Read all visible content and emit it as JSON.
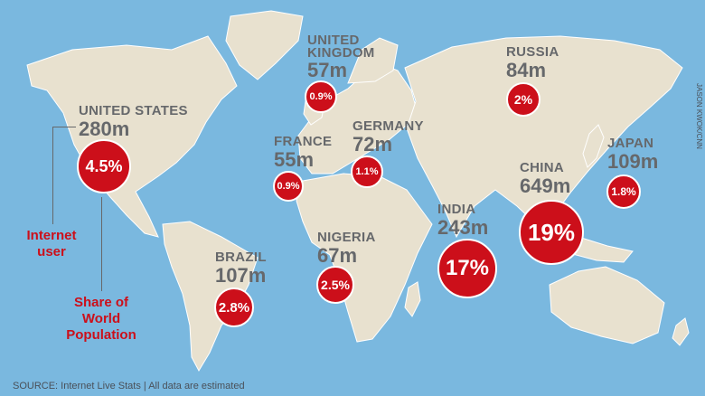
{
  "countries": [
    {
      "name": "UNITED STATES",
      "users": "280m",
      "share": "4.5%"
    },
    {
      "name": "UNITED\nKINGDOM",
      "users": "57m",
      "share": "0.9%"
    },
    {
      "name": "RUSSIA",
      "users": "84m",
      "share": "2%"
    },
    {
      "name": "GERMANY",
      "users": "72m",
      "share": "1.1%"
    },
    {
      "name": "FRANCE",
      "users": "55m",
      "share": "0.9%"
    },
    {
      "name": "JAPAN",
      "users": "109m",
      "share": "1.8%"
    },
    {
      "name": "CHINA",
      "users": "649m",
      "share": "19%"
    },
    {
      "name": "INDIA",
      "users": "243m",
      "share": "17%"
    },
    {
      "name": "NIGERIA",
      "users": "67m",
      "share": "2.5%"
    },
    {
      "name": "BRAZIL",
      "users": "107m",
      "share": "2.8%"
    }
  ],
  "legend": {
    "internet_user": "Internet\nuser",
    "share_of_world": "Share of\nWorld\nPopulation"
  },
  "source": "SOURCE: Internet Live Stats | All data are estimated",
  "credit": "JASON KWOK/CNN",
  "colors": {
    "ocean": "#7ab8df",
    "land": "#e8e1cf",
    "bubble": "#cc0f1a",
    "text": "#66686b"
  }
}
